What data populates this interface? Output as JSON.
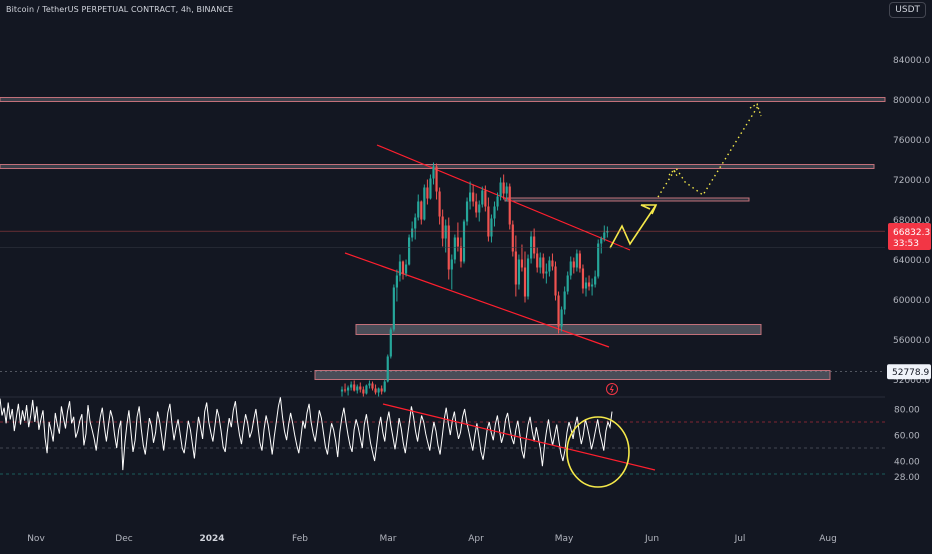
{
  "header": {
    "symbol_line": "Bitcoin / TetherUS PERPETUAL CONTRACT, 4h, BINANCE",
    "currency": "USDT"
  },
  "price_axis": {
    "ticks": [
      {
        "label": "84000.0",
        "value": 84000
      },
      {
        "label": "80000.0",
        "value": 80000
      },
      {
        "label": "76000.0",
        "value": 76000
      },
      {
        "label": "72000.0",
        "value": 72000
      },
      {
        "label": "68000.0",
        "value": 68000
      },
      {
        "label": "64000.0",
        "value": 64000
      },
      {
        "label": "60000.0",
        "value": 60000
      },
      {
        "label": "56000.0",
        "value": 56000
      },
      {
        "label": "52000.0",
        "value": 52000
      }
    ],
    "current_price": {
      "label": "66832.3",
      "countdown": "33:53",
      "value": 66832.3,
      "color": "#f23645"
    },
    "marker_price": {
      "label": "52778.9",
      "value": 52778.9
    }
  },
  "rsi_axis": {
    "ticks": [
      {
        "label": "80.00",
        "value": 80
      },
      {
        "label": "60.00",
        "value": 60
      },
      {
        "label": "40.00",
        "value": 40
      },
      {
        "label": "28.00",
        "value": 28
      }
    ]
  },
  "time_axis": {
    "labels": [
      {
        "label": "Nov",
        "month": 0,
        "bold": false
      },
      {
        "label": "Dec",
        "month": 1,
        "bold": false
      },
      {
        "label": "2024",
        "month": 2,
        "bold": true
      },
      {
        "label": "Feb",
        "month": 3,
        "bold": false
      },
      {
        "label": "Mar",
        "month": 4,
        "bold": false
      },
      {
        "label": "Apr",
        "month": 5,
        "bold": false
      },
      {
        "label": "May",
        "month": 6,
        "bold": false
      },
      {
        "label": "Jun",
        "month": 7,
        "bold": false
      },
      {
        "label": "Jul",
        "month": 8,
        "bold": false
      },
      {
        "label": "Aug",
        "month": 9,
        "bold": false
      }
    ]
  },
  "colors": {
    "background": "#131722",
    "bull": "#26a69a",
    "bear": "#ef5350",
    "channel": "#ff1f2e",
    "zone": "#5d606b",
    "zone_border": "#c2707a",
    "projection": "#f5e94a",
    "rsi_line": "#ffffff",
    "rsi_trendline": "#ff1f2e",
    "circle": "#f5e94a"
  },
  "chart_data": {
    "type": "candlestick",
    "symbol": "BTCUSDT.P",
    "timeframe": "4h",
    "candles": [
      [
        50800,
        51300,
        50200,
        51000
      ],
      [
        51000,
        51600,
        50700,
        50900
      ],
      [
        50900,
        51400,
        50400,
        51200
      ],
      [
        51200,
        51800,
        50900,
        51500
      ],
      [
        51500,
        51900,
        50800,
        50900
      ],
      [
        50900,
        51500,
        50600,
        51300
      ],
      [
        51300,
        51700,
        50700,
        51000
      ],
      [
        51000,
        51300,
        50300,
        50600
      ],
      [
        50600,
        51500,
        50500,
        51400
      ],
      [
        51400,
        51900,
        51100,
        51600
      ],
      [
        51600,
        51800,
        50900,
        51100
      ],
      [
        51100,
        51500,
        50500,
        50700
      ],
      [
        50700,
        51200,
        50200,
        51100
      ],
      [
        51100,
        51400,
        50500,
        50800
      ],
      [
        50800,
        52000,
        50700,
        51800
      ],
      [
        51800,
        54500,
        51700,
        54300
      ],
      [
        54300,
        57200,
        54100,
        57000
      ],
      [
        57000,
        61500,
        56800,
        61200
      ],
      [
        61200,
        63000,
        59800,
        62400
      ],
      [
        62400,
        64500,
        61800,
        63800
      ],
      [
        63800,
        63900,
        62000,
        62600
      ],
      [
        62600,
        64000,
        62300,
        63500
      ],
      [
        63500,
        66500,
        63400,
        66200
      ],
      [
        66200,
        67800,
        65800,
        67100
      ],
      [
        67100,
        68600,
        66000,
        68200
      ],
      [
        68200,
        70500,
        67900,
        69800
      ],
      [
        69800,
        69900,
        67500,
        68000
      ],
      [
        68000,
        71500,
        67900,
        71200
      ],
      [
        71200,
        72000,
        69500,
        70100
      ],
      [
        70100,
        72500,
        70000,
        72100
      ],
      [
        72100,
        73700,
        71500,
        73300
      ],
      [
        73300,
        73600,
        70000,
        70800
      ],
      [
        70800,
        71200,
        67500,
        68300
      ],
      [
        68300,
        69000,
        65300,
        66100
      ],
      [
        66100,
        68000,
        64700,
        67400
      ],
      [
        67400,
        68200,
        62000,
        63000
      ],
      [
        63000,
        64500,
        61000,
        64000
      ],
      [
        64000,
        66500,
        63600,
        66200
      ],
      [
        66200,
        67700,
        64800,
        65300
      ],
      [
        65300,
        66200,
        63200,
        63800
      ],
      [
        63800,
        68000,
        63600,
        67800
      ],
      [
        67800,
        70200,
        67400,
        69800
      ],
      [
        69800,
        71800,
        69000,
        70700
      ],
      [
        70700,
        71500,
        69300,
        69800
      ],
      [
        69800,
        70600,
        68200,
        68700
      ],
      [
        68700,
        69900,
        67800,
        69500
      ],
      [
        69500,
        71300,
        69200,
        70900
      ],
      [
        70900,
        71400,
        68800,
        69300
      ],
      [
        69300,
        70200,
        65800,
        66300
      ],
      [
        66300,
        68500,
        65700,
        68100
      ],
      [
        68100,
        69800,
        67300,
        69300
      ],
      [
        69300,
        70700,
        68900,
        70300
      ],
      [
        70300,
        72200,
        69900,
        71700
      ],
      [
        71700,
        72500,
        70000,
        70600
      ],
      [
        70600,
        71700,
        69800,
        71300
      ],
      [
        71300,
        71600,
        67000,
        67500
      ],
      [
        67500,
        67900,
        64300,
        64800
      ],
      [
        64800,
        66400,
        60300,
        61500
      ],
      [
        61500,
        64500,
        61000,
        64000
      ],
      [
        64000,
        65500,
        62800,
        63200
      ],
      [
        63200,
        64800,
        59700,
        60300
      ],
      [
        60300,
        64500,
        60000,
        64100
      ],
      [
        64100,
        66800,
        63600,
        66300
      ],
      [
        66300,
        67100,
        64100,
        64600
      ],
      [
        64600,
        65200,
        62700,
        63200
      ],
      [
        63200,
        64700,
        62600,
        64200
      ],
      [
        64200,
        64600,
        62100,
        62600
      ],
      [
        62600,
        63600,
        61600,
        62800
      ],
      [
        62800,
        64300,
        62300,
        63900
      ],
      [
        63900,
        64600,
        62900,
        63300
      ],
      [
        63300,
        63800,
        59900,
        60400
      ],
      [
        60400,
        60800,
        56600,
        57300
      ],
      [
        57300,
        59300,
        56800,
        59000
      ],
      [
        59000,
        61300,
        58500,
        60800
      ],
      [
        60800,
        62800,
        60500,
        62400
      ],
      [
        62400,
        64300,
        62000,
        63800
      ],
      [
        63800,
        64200,
        62600,
        63200
      ],
      [
        63200,
        65000,
        62800,
        64600
      ],
      [
        64600,
        64900,
        62700,
        63100
      ],
      [
        63100,
        63500,
        60600,
        61100
      ],
      [
        61100,
        62200,
        60300,
        61700
      ],
      [
        61700,
        62400,
        60900,
        61300
      ],
      [
        61300,
        62100,
        60400,
        61500
      ],
      [
        61500,
        62900,
        61200,
        62300
      ],
      [
        62300,
        66000,
        62100,
        65600
      ],
      [
        65600,
        66300,
        64600,
        66100
      ],
      [
        66100,
        67400,
        65800,
        66700
      ],
      [
        66700,
        67300,
        66200,
        66832
      ]
    ],
    "rsi": [
      88,
      75,
      81,
      69,
      85,
      72,
      80,
      63,
      74,
      84,
      68,
      79,
      71,
      83,
      66,
      75,
      87,
      70,
      82,
      64,
      72,
      79,
      58,
      46,
      70,
      63,
      55,
      77,
      68,
      61,
      82,
      73,
      65,
      78,
      86,
      69,
      74,
      58,
      63,
      71,
      76,
      52,
      61,
      83,
      70,
      64,
      57,
      48,
      62,
      74,
      81,
      66,
      55,
      68,
      79,
      73,
      60,
      50,
      64,
      71,
      33,
      54,
      68,
      79,
      62,
      47,
      56,
      74,
      82,
      65,
      52,
      45,
      60,
      73,
      67,
      54,
      62,
      78,
      70,
      59,
      48,
      63,
      77,
      84,
      69,
      56,
      65,
      72,
      61,
      50,
      46,
      58,
      71,
      64,
      53,
      42,
      60,
      74,
      66,
      57,
      78,
      85,
      70,
      62,
      55,
      67,
      80,
      74,
      63,
      51,
      47,
      62,
      73,
      66,
      79,
      86,
      71,
      60,
      53,
      66,
      76,
      69,
      58,
      63,
      72,
      80,
      67,
      54,
      48,
      64,
      75,
      68,
      57,
      45,
      59,
      70,
      82,
      89,
      74,
      63,
      56,
      68,
      77,
      69,
      60,
      52,
      46,
      58,
      71,
      65,
      77,
      84,
      70,
      61,
      55,
      67,
      79,
      73,
      62,
      51,
      45,
      58,
      69,
      64,
      55,
      43,
      62,
      73,
      81,
      70,
      60,
      52,
      47,
      64,
      72,
      66,
      58,
      50,
      68,
      76,
      65,
      54,
      47,
      40,
      52,
      66,
      74,
      62,
      55,
      70,
      78,
      67,
      58,
      49,
      60,
      73,
      65,
      54,
      46,
      58,
      70,
      82,
      74,
      63,
      55,
      66,
      75,
      70,
      61,
      54,
      48,
      60,
      70,
      63,
      52,
      45,
      58,
      72,
      81,
      69,
      60,
      71,
      78,
      66,
      57,
      62,
      74,
      80,
      70,
      63,
      55,
      48,
      60,
      69,
      58,
      47,
      41,
      52,
      64,
      70,
      62,
      56,
      68,
      75,
      64,
      54,
      60,
      72,
      77,
      66,
      58,
      53,
      64,
      71,
      60,
      48,
      42,
      56,
      68,
      74,
      63,
      55,
      66,
      58,
      49,
      36,
      52,
      63,
      72,
      60,
      52,
      60,
      68,
      56,
      46,
      40,
      48,
      62,
      70,
      64,
      57,
      68,
      74,
      62,
      53,
      60,
      72,
      66,
      58,
      49,
      56,
      64,
      72,
      62,
      55,
      48,
      63,
      70,
      66,
      78
    ],
    "rsi_levels": [
      70,
      50,
      30
    ]
  }
}
